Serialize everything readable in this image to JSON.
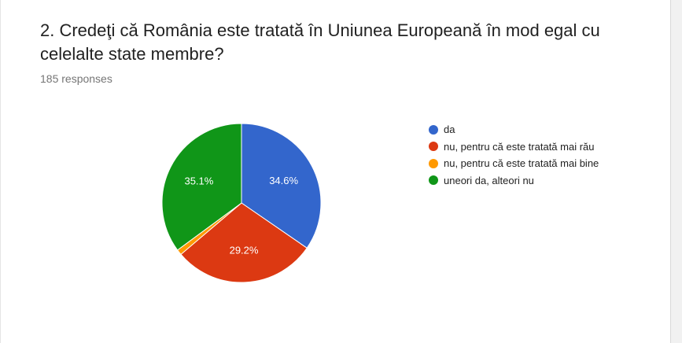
{
  "question": {
    "title": "2. Credeţi că România este tratată în Uniunea Europeană în mod egal cu celelalte state membre?",
    "responses": "185 responses"
  },
  "chart_data": {
    "type": "pie",
    "title": "",
    "total_responses": 185,
    "start_angle_deg": 90,
    "direction": "clockwise",
    "slices": [
      {
        "label": "da",
        "value": 34.6,
        "display": "34.6%",
        "color": "#3366cc"
      },
      {
        "label": "nu, pentru că este tratată mai rău",
        "value": 29.2,
        "display": "29.2%",
        "color": "#dc3912"
      },
      {
        "label": "nu, pentru că este tratată mai bine",
        "value": 1.1,
        "display": "",
        "color": "#ff9900"
      },
      {
        "label": "uneori da, alteori nu",
        "value": 35.1,
        "display": "35.1%",
        "color": "#109618"
      }
    ],
    "legend_position": "right"
  }
}
